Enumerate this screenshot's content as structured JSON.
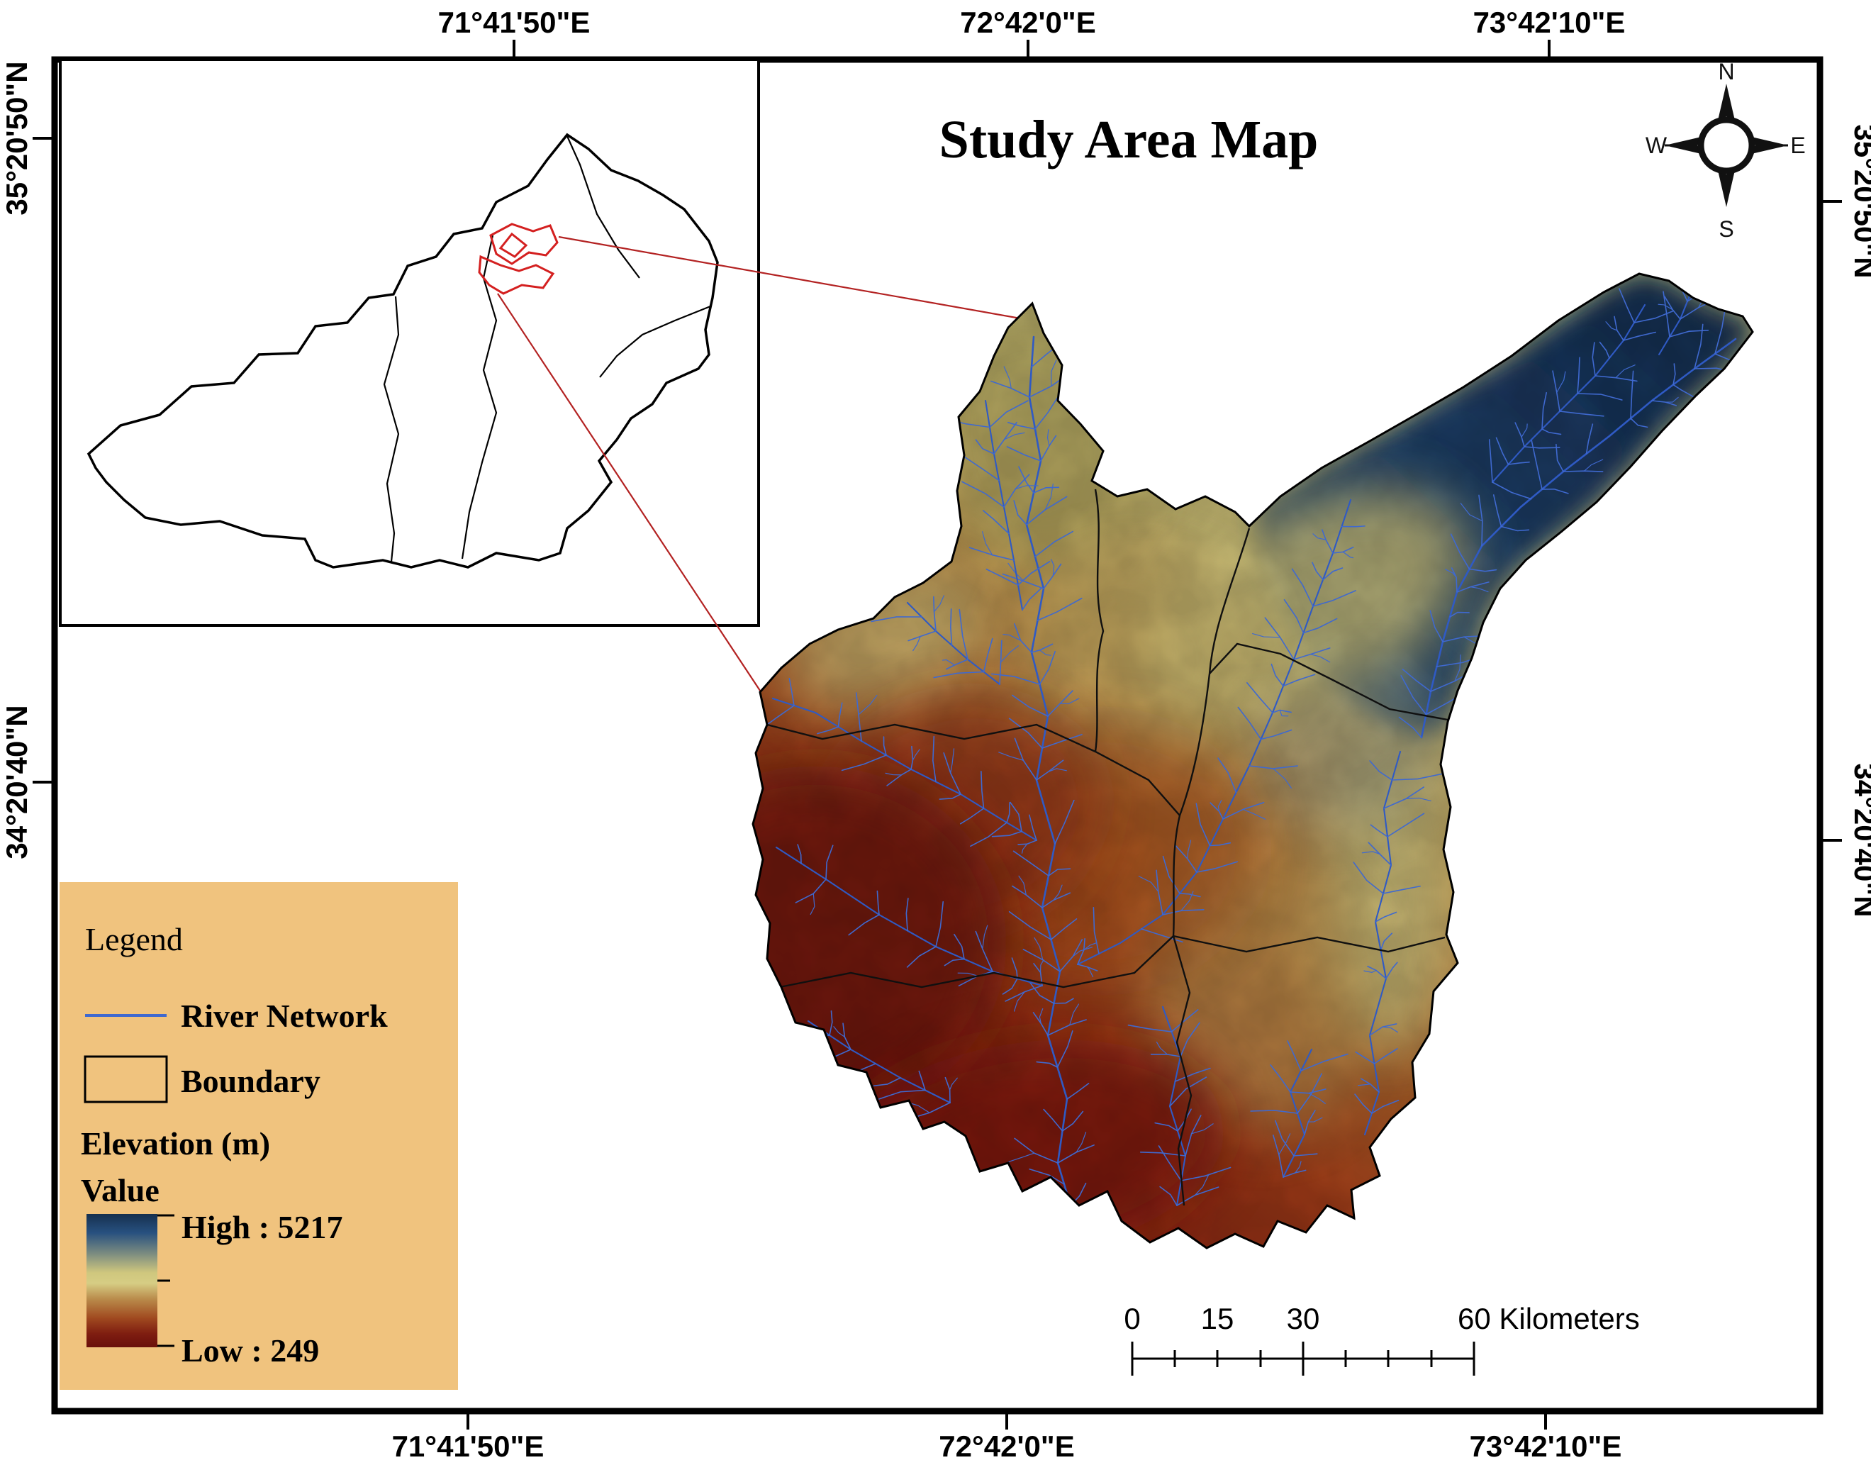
{
  "header": {
    "title": "Study Area Map"
  },
  "axes": {
    "top": [
      "71°41'50\"E",
      "72°42'0\"E",
      "73°42'10\"E"
    ],
    "bottom": [
      "71°41'50\"E",
      "72°42'0\"E",
      "73°42'10\"E"
    ],
    "left": [
      "35°20'50\"N",
      "34°20'40\"N"
    ],
    "right": [
      "35°20'50\"N",
      "34°20'40\"N"
    ]
  },
  "compass": {
    "n": "N",
    "e": "E",
    "s": "S",
    "w": "W"
  },
  "legend": {
    "title": "Legend",
    "river": "River Network",
    "boundary": "Boundary",
    "elevation": "Elevation (m)",
    "value": "Value",
    "high": "High : 5217",
    "low": "Low : 249"
  },
  "scalebar": {
    "t0": "0",
    "t15": "15",
    "t30": "30",
    "tend": "60 Kilometers"
  },
  "map": {
    "elevation_high": 5217,
    "elevation_low": 249
  },
  "colors": {
    "legend_bg": "#f0c37e",
    "river": "#3f69cf",
    "leader_red": "#b32222",
    "study_area_red": "#d42020",
    "high_color": "#16304f",
    "low_color": "#6a100c"
  }
}
